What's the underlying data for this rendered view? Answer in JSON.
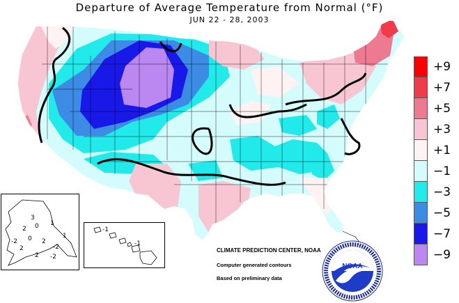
{
  "map": {
    "title": "Departure of Average Temperature from Normal (°F)",
    "subtitle": "JUN 22 - 28, 2003",
    "region": "Contiguous United States"
  },
  "legend": {
    "items": [
      {
        "label": "+9",
        "color": "#ff0000"
      },
      {
        "label": "+7",
        "color": "#f03c4a"
      },
      {
        "label": "+5",
        "color": "#ee7a92"
      },
      {
        "label": "+3",
        "color": "#f8c6d2"
      },
      {
        "label": "+1",
        "color": "#fff2f2"
      },
      {
        "label": "−1",
        "color": "#d4fcfc"
      },
      {
        "label": "−3",
        "color": "#22eaea"
      },
      {
        "label": "−5",
        "color": "#3c8ce6"
      },
      {
        "label": "−7",
        "color": "#1818e8"
      },
      {
        "label": "−9",
        "color": "#bb88f2"
      }
    ]
  },
  "credit": "CLIMATE PREDICTION CENTER, NOAA",
  "notes": {
    "line1": "Computer generated contours",
    "line2": "Based on preliminary data"
  },
  "alaska_labels": [
    "1",
    "3",
    "0",
    "2",
    "0",
    "2",
    "-2",
    "-2",
    "2",
    "1",
    "2",
    "-2"
  ],
  "hawaii_labels": [
    "-1",
    "-1"
  ],
  "logo": {
    "text": "NOAA",
    "icon": "noaa-bird-logo"
  }
}
